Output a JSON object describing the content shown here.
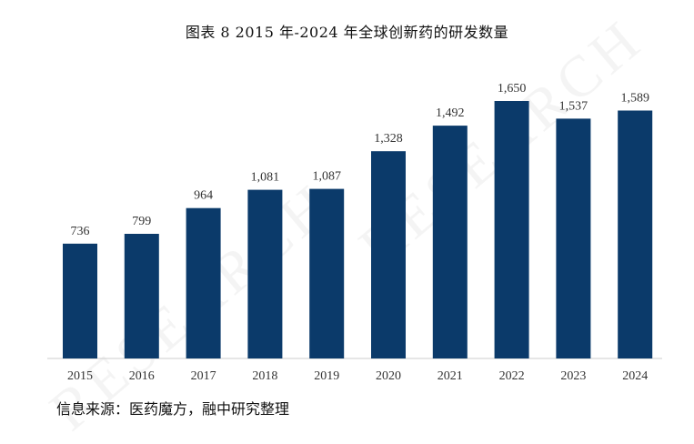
{
  "title": "图表 8 2015 年-2024 年全球创新药的研发数量",
  "source": "信息来源：医药魔方，融中研究整理",
  "watermark": "RESEARCH",
  "colors": {
    "bar": "#0b3a6a",
    "axis": "#cccccc",
    "label": "#333333"
  },
  "chart_data": {
    "type": "bar",
    "title": "图表 8 2015 年-2024 年全球创新药的研发数量",
    "xlabel": "",
    "ylabel": "",
    "categories": [
      "2015",
      "2016",
      "2017",
      "2018",
      "2019",
      "2020",
      "2021",
      "2022",
      "2023",
      "2024"
    ],
    "values": [
      736,
      799,
      964,
      1081,
      1087,
      1328,
      1492,
      1650,
      1537,
      1589
    ],
    "value_labels": [
      "736",
      "799",
      "964",
      "1,081",
      "1,087",
      "1,328",
      "1,492",
      "1,650",
      "1,537",
      "1,589"
    ],
    "ylim": [
      0,
      1800
    ],
    "grid": false,
    "legend": "none"
  }
}
